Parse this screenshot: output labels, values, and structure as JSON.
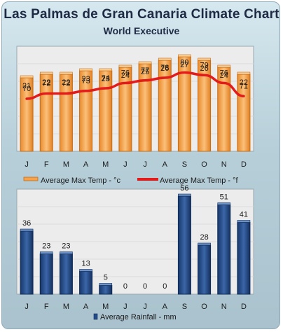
{
  "header": {
    "title": "Las Palmas de Gran Canaria Climate Chart",
    "subtitle": "World Executive"
  },
  "colors": {
    "bar_orange_fill": "#f6a24a",
    "bar_orange_edge": "#c46d16",
    "line_red": "#e31b1b",
    "bar_blue_fill": "#244c8a",
    "bar_blue_edge": "#0f2b57",
    "plot_bg": "#ececec"
  },
  "chart_data": [
    {
      "type": "bar+line",
      "categories": [
        "J",
        "F",
        "M",
        "A",
        "M",
        "J",
        "J",
        "A",
        "S",
        "O",
        "N",
        "D"
      ],
      "series": [
        {
          "name": "Average Max Temp - °c",
          "kind": "bar",
          "values": [
            21,
            22,
            22,
            23,
            23,
            24,
            25,
            26,
            27,
            26,
            24,
            22
          ]
        },
        {
          "name": "Average Max Temp - °f",
          "kind": "line",
          "values": [
            70,
            72,
            72,
            73,
            74,
            76,
            77,
            78,
            80,
            79,
            76,
            71
          ]
        }
      ],
      "legend_position": "bottom",
      "grid": true
    },
    {
      "type": "bar",
      "categories": [
        "J",
        "F",
        "M",
        "A",
        "M",
        "J",
        "J",
        "A",
        "S",
        "O",
        "N",
        "D"
      ],
      "series": [
        {
          "name": "Average Rainfall - mm",
          "values": [
            36,
            23,
            23,
            13,
            5,
            0,
            0,
            0,
            56,
            28,
            51,
            41
          ]
        }
      ],
      "legend_position": "bottom",
      "grid": true
    }
  ]
}
